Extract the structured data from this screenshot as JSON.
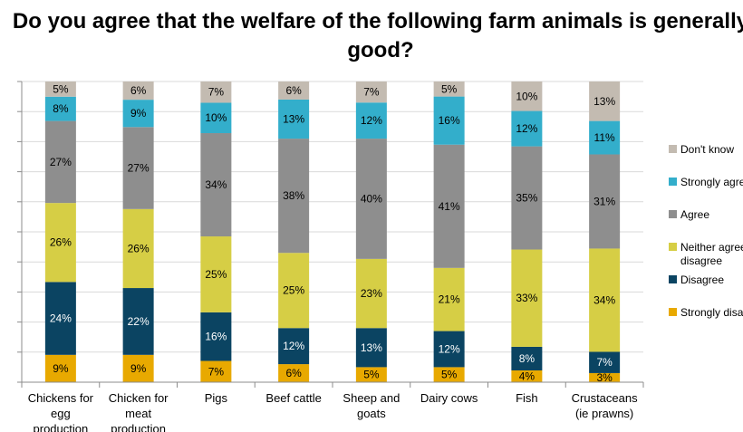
{
  "chart_data": {
    "type": "bar",
    "stacked": true,
    "title": "Do you agree that the welfare of the following farm animals is generally good?",
    "categories": [
      "Chickens for egg production",
      "Chicken for meat production",
      "Pigs",
      "Beef cattle",
      "Sheep and goats",
      "Dairy cows",
      "Fish",
      "Crustaceans (ie prawns)"
    ],
    "series": [
      {
        "name": "Strongly disagree",
        "color": "#e8a900",
        "label_color": "#000000",
        "values": [
          9,
          9,
          7,
          6,
          5,
          5,
          4,
          3
        ]
      },
      {
        "name": "Disagree",
        "color": "#0b4462",
        "label_color": "#ffffff",
        "values": [
          24,
          22,
          16,
          12,
          13,
          12,
          8,
          7
        ]
      },
      {
        "name": "Neither agree nor disagree",
        "color": "#d6ce45",
        "label_color": "#000000",
        "values": [
          26,
          26,
          25,
          25,
          23,
          21,
          33,
          34
        ]
      },
      {
        "name": "Agree",
        "color": "#8e8e8e",
        "label_color": "#000000",
        "values": [
          27,
          27,
          34,
          38,
          40,
          41,
          35,
          31
        ]
      },
      {
        "name": "Strongly agree",
        "color": "#33aecb",
        "label_color": "#000000",
        "values": [
          8,
          9,
          10,
          13,
          12,
          16,
          12,
          11
        ]
      },
      {
        "name": "Don't know",
        "color": "#c3bbb1",
        "label_color": "#000000",
        "values": [
          5,
          6,
          7,
          6,
          7,
          5,
          10,
          13
        ]
      }
    ],
    "legend_order": [
      "Don't know",
      "Strongly agree",
      "Agree",
      "Neither agree nor disagree",
      "Disagree",
      "Strongly disagree"
    ],
    "value_suffix": "%",
    "ylim": [
      0,
      100
    ],
    "grid": true,
    "legend_position": "right"
  }
}
